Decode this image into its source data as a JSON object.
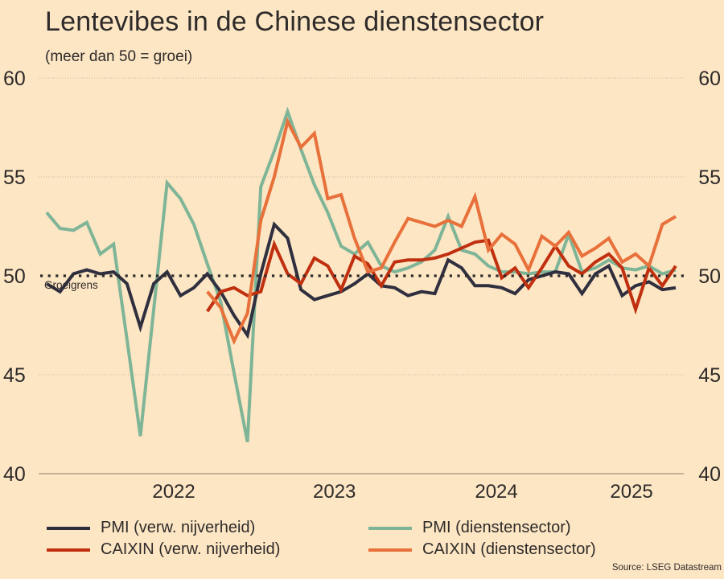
{
  "header": {
    "title": "Lentevibes in de Chinese dienstensector",
    "subtitle": "(meer dan 50 = groei)"
  },
  "source": "Source: LSEG Datastream",
  "colors": {
    "background": "#FDE6C4",
    "pmi_manufacturing": "#2F2F3F",
    "pmi_services": "#7FB597",
    "caixin_manufacturing": "#C0300F",
    "caixin_services": "#E8703A",
    "reference_line": "#2E2B2A"
  },
  "chart_data": {
    "type": "line",
    "title": "Lentevibes in de Chinese dienstensector",
    "subtitle": "(meer dan 50 = groei)",
    "xlabel": "",
    "ylabel": "",
    "ylim": [
      40,
      60
    ],
    "y_ticks": [
      "40",
      "45",
      "50",
      "55",
      "60"
    ],
    "y_ticks_right": [
      "40",
      "45",
      "50",
      "55",
      "60"
    ],
    "x_tick_labels": [
      {
        "label": "2022",
        "month_index": 9.5
      },
      {
        "label": "2023",
        "month_index": 21.5
      },
      {
        "label": "2024",
        "month_index": 33.6
      },
      {
        "label": "2025",
        "month_index": 43.7
      }
    ],
    "grid": "horizontal dotted",
    "frequency": "monthly",
    "n_points": 48,
    "reference_line": {
      "value": 50,
      "label": "Groeigrens"
    },
    "legend_position": "bottom",
    "series": [
      {
        "key": "pmi_manufacturing",
        "name": "PMI (verw. nijverheid)",
        "start_index": 0,
        "values": [
          49.6,
          49.2,
          50.1,
          50.3,
          50.1,
          50.2,
          49.6,
          47.4,
          49.6,
          50.2,
          49.0,
          49.4,
          50.1,
          49.2,
          48.0,
          47.0,
          50.1,
          52.6,
          51.9,
          49.3,
          48.8,
          49.0,
          49.2,
          49.6,
          50.1,
          49.5,
          49.4,
          49.0,
          49.2,
          49.1,
          50.8,
          50.4,
          49.5,
          49.5,
          49.4,
          49.1,
          49.8,
          50.0,
          50.2,
          50.1,
          49.1,
          50.1,
          50.5,
          49.0,
          49.5,
          49.7,
          49.3,
          49.4
        ]
      },
      {
        "key": "pmi_services",
        "name": "PMI (dienstensector)",
        "start_index": 0,
        "values": [
          53.2,
          52.4,
          52.3,
          52.7,
          51.1,
          51.6,
          46.8,
          41.9,
          48.3,
          54.7,
          53.9,
          52.6,
          50.6,
          48.7,
          45.1,
          41.6,
          54.5,
          56.3,
          58.3,
          56.4,
          54.6,
          53.2,
          51.5,
          51.1,
          51.7,
          50.5,
          50.2,
          50.4,
          50.7,
          51.3,
          53.0,
          51.3,
          51.1,
          50.5,
          50.2,
          50.2,
          50.1,
          50.2,
          50.2,
          52.1,
          50.2,
          50.4,
          50.8,
          50.4,
          50.3,
          50.5,
          50.1,
          50.3
        ]
      },
      {
        "key": "caixin_manufacturing",
        "name": "CAIXIN (verw. nijverheid)",
        "start_index": 12,
        "values": [
          48.2,
          49.2,
          49.4,
          49.0,
          49.2,
          51.6,
          50.1,
          49.6,
          50.9,
          50.5,
          49.3,
          51.0,
          50.6,
          49.5,
          50.7,
          50.8,
          50.8,
          50.9,
          51.1,
          51.4,
          51.7,
          51.8,
          49.9,
          50.4,
          49.4,
          50.4,
          51.5,
          50.5,
          50.1,
          50.7,
          51.1,
          50.4,
          48.3,
          50.4,
          49.5,
          50.5
        ]
      },
      {
        "key": "caixin_services",
        "name": "CAIXIN (dienstensector)",
        "start_index": 12,
        "values": [
          49.2,
          48.4,
          46.7,
          48.1,
          52.8,
          55.0,
          57.8,
          56.5,
          57.2,
          53.9,
          54.1,
          51.9,
          50.2,
          50.4,
          51.7,
          52.9,
          52.7,
          52.5,
          52.8,
          52.5,
          54.0,
          51.3,
          52.1,
          51.6,
          50.3,
          52.0,
          51.5,
          52.2,
          51.0,
          51.4,
          51.9,
          50.7,
          51.1,
          50.5,
          52.6,
          53.0
        ]
      }
    ]
  }
}
